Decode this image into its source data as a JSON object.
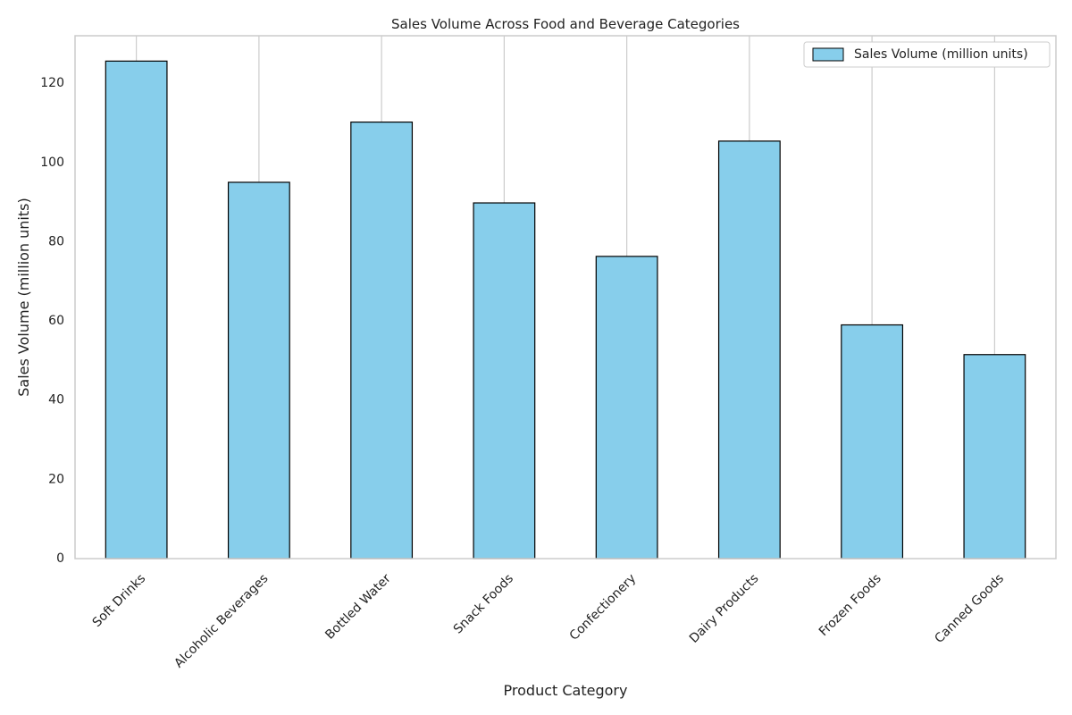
{
  "chart_data": {
    "type": "bar",
    "title": "Sales Volume Across Food and Beverage Categories",
    "xlabel": "Product Category",
    "ylabel": "Sales Volume (million units)",
    "categories": [
      "Soft Drinks",
      "Alcoholic Beverages",
      "Bottled Water",
      "Snack Foods",
      "Confectionery",
      "Dairy Products",
      "Frozen Foods",
      "Canned Goods"
    ],
    "series": [
      {
        "name": "Sales Volume (million units)",
        "values": [
          125.6,
          95.0,
          110.2,
          89.8,
          76.3,
          105.4,
          59.0,
          51.5
        ]
      }
    ],
    "ylim": [
      0,
      132
    ],
    "yticks": [
      0,
      20,
      40,
      60,
      80,
      100,
      120
    ],
    "grid": "x",
    "legend": "top-right",
    "colors": {
      "bar": "#87ceeb",
      "edge": "#000000",
      "grid": "#cccccc",
      "spine": "#cccccc"
    }
  }
}
